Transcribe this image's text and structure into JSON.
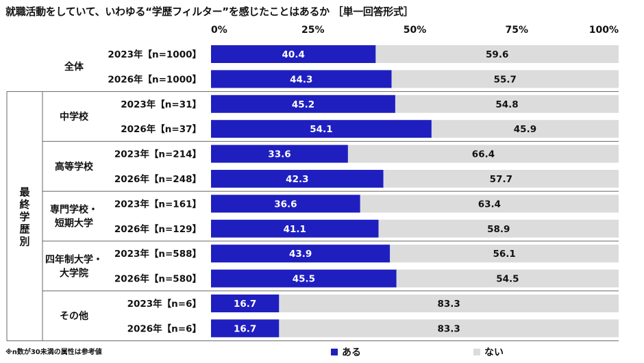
{
  "title": "就職活動をしていて、いわゆる“学歴フィルター”を感じたことはあるか ［単一回答形式］",
  "footnote": "※n数が30未満の属性は参考値",
  "group_label": "最終学歴別",
  "colors": {
    "yes": "#1f1fbf",
    "no": "#dcdcdc",
    "frame": "#666666"
  },
  "chart_data": {
    "type": "bar",
    "stacked": true,
    "orientation": "horizontal",
    "xlim": [
      0,
      100
    ],
    "x_ticks": [
      "0%",
      "25%",
      "50%",
      "75%",
      "100%"
    ],
    "series": [
      {
        "name": "ある",
        "color": "#1f1fbf"
      },
      {
        "name": "ない",
        "color": "#dcdcdc"
      }
    ],
    "groups": [
      {
        "label": [
          "全体"
        ],
        "rows": [
          {
            "label": "2023年【n=1000】",
            "yes": 40.4,
            "no": 59.6
          },
          {
            "label": "2026年【n=1000】",
            "yes": 44.3,
            "no": 55.7
          }
        ]
      },
      {
        "label": [
          "中学校"
        ],
        "rows": [
          {
            "label": "2023年【n=31】",
            "yes": 45.2,
            "no": 54.8
          },
          {
            "label": "2026年【n=37】",
            "yes": 54.1,
            "no": 45.9
          }
        ]
      },
      {
        "label": [
          "高等学校"
        ],
        "rows": [
          {
            "label": "2023年【n=214】",
            "yes": 33.6,
            "no": 66.4
          },
          {
            "label": "2026年【n=248】",
            "yes": 42.3,
            "no": 57.7
          }
        ]
      },
      {
        "label": [
          "専門学校・",
          "短期大学"
        ],
        "rows": [
          {
            "label": "2023年【n=161】",
            "yes": 36.6,
            "no": 63.4
          },
          {
            "label": "2026年【n=129】",
            "yes": 41.1,
            "no": 58.9
          }
        ]
      },
      {
        "label": [
          "四年制大学・",
          "大学院"
        ],
        "rows": [
          {
            "label": "2023年【n=588】",
            "yes": 43.9,
            "no": 56.1
          },
          {
            "label": "2026年【n=580】",
            "yes": 45.5,
            "no": 54.5
          }
        ]
      },
      {
        "label": [
          "その他"
        ],
        "rows": [
          {
            "label": "2023年【n=6】",
            "yes": 16.7,
            "no": 83.3
          },
          {
            "label": "2026年【n=6】",
            "yes": 16.7,
            "no": 83.3
          }
        ]
      }
    ]
  }
}
